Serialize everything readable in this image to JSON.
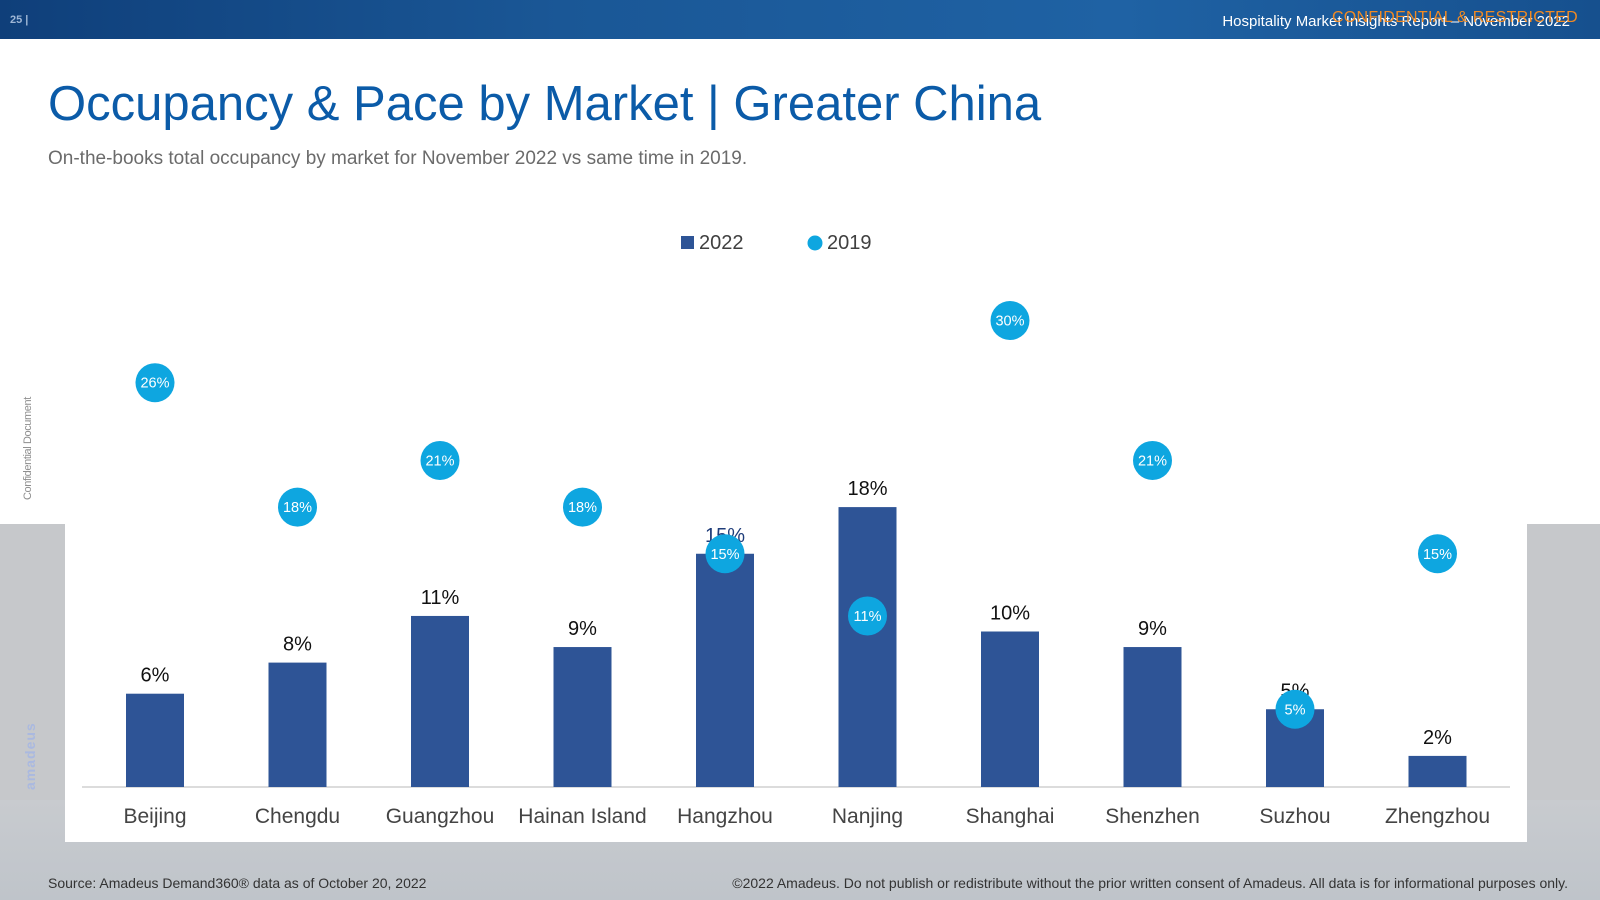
{
  "header": {
    "page_number": "25 |",
    "report_title": "Hospitality Market Insights Report – November 2022",
    "confidential_label": "CONFIDENTIAL & RESTRICTED"
  },
  "title": "Occupancy & Pace by Market | Greater China",
  "subtitle": "On-the-books total occupancy by market for November 2022 vs same time in 2019.",
  "side_label": "Confidential Document",
  "logo_text": "amadeus",
  "footer": {
    "source": "Source: Amadeus Demand360® data as of October 20, 2022",
    "copyright": "©2022 Amadeus. Do not publish or redistribute without the prior written consent of Amadeus. All data is for informational purposes only."
  },
  "colors": {
    "bar_2022": "#2e5496",
    "marker_2019": "#0ea6e0",
    "title": "#0b5ba8"
  },
  "chart_data": {
    "type": "bar",
    "title": "Occupancy & Pace by Market | Greater China",
    "categories": [
      "Beijing",
      "Chengdu",
      "Guangzhou",
      "Hainan Island",
      "Hangzhou",
      "Nanjing",
      "Shanghai",
      "Shenzhen",
      "Suzhou",
      "Zhengzhou"
    ],
    "series": [
      {
        "name": "2022",
        "kind": "bar",
        "values": [
          6,
          8,
          11,
          9,
          15,
          18,
          10,
          9,
          5,
          2
        ],
        "labels": [
          "6%",
          "8%",
          "11%",
          "9%",
          "15%",
          "18%",
          "10%",
          "9%",
          "5%",
          "2%"
        ]
      },
      {
        "name": "2019",
        "kind": "marker",
        "values": [
          26,
          18,
          21,
          18,
          15,
          11,
          30,
          21,
          5,
          15
        ],
        "labels": [
          "26%",
          "18%",
          "21%",
          "18%",
          "15%",
          "11%",
          "30%",
          "21%",
          "5%",
          "15%"
        ]
      }
    ],
    "xlabel": "",
    "ylabel": "",
    "ylim": [
      0,
      30
    ],
    "grid": false,
    "legend": "top-center"
  }
}
